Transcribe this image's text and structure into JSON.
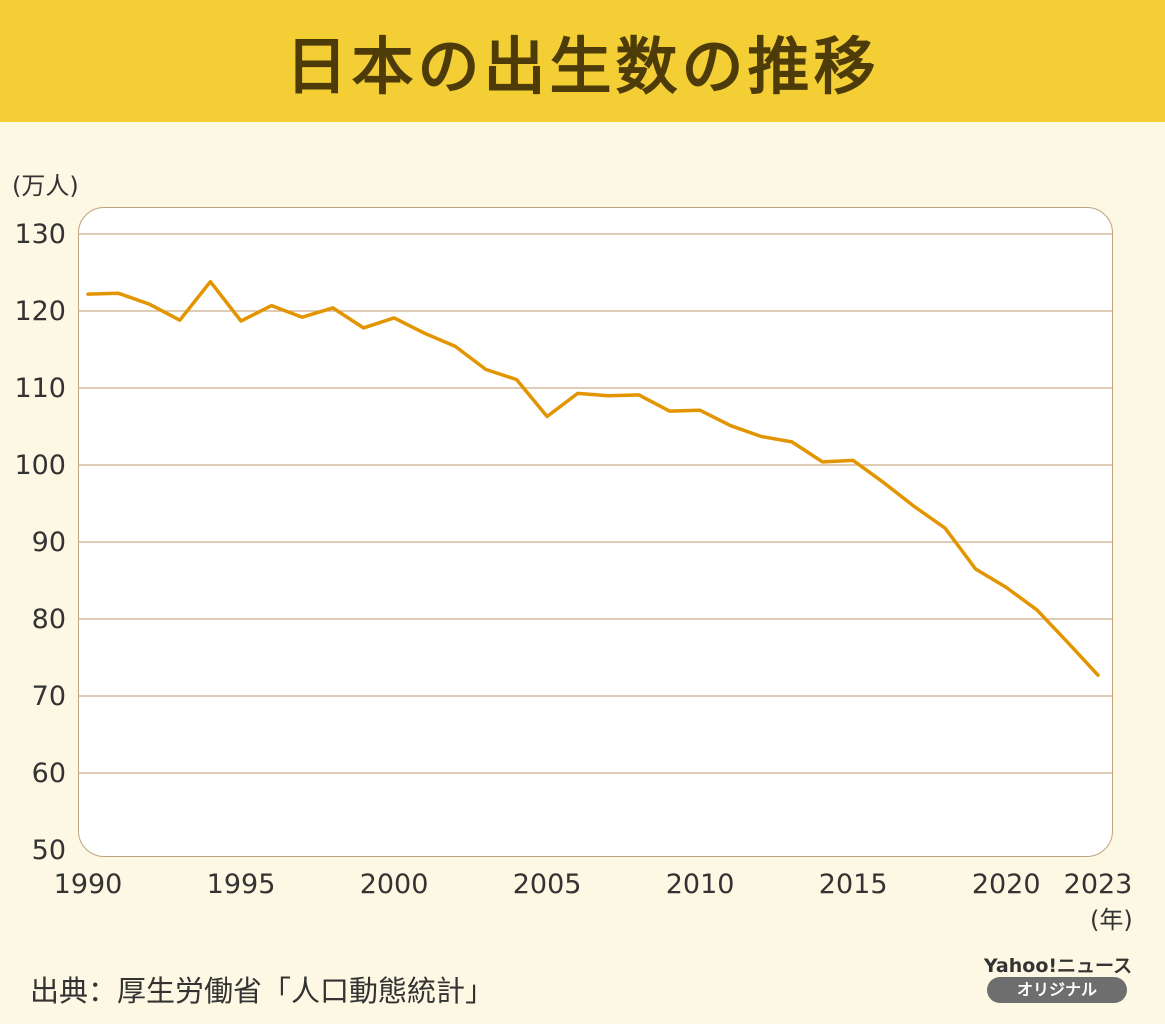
{
  "header": {
    "title": "日本の出生数の推移"
  },
  "source": "出典：厚生労働省「人口動態統計」",
  "logo": {
    "brand": "Yahoo!ニュース",
    "badge": "オリジナル"
  },
  "colors": {
    "line": "#e39500",
    "header": "#f3cf35",
    "background": "#fdf8e3"
  },
  "chart_data": {
    "type": "line",
    "title": "日本の出生数の推移",
    "ylabel": "(万人)",
    "xlabel": "(年)",
    "ylim": [
      50,
      130
    ],
    "xlim": [
      1990,
      2023
    ],
    "yticks": [
      50,
      60,
      70,
      80,
      90,
      100,
      110,
      120,
      130
    ],
    "xticks": [
      "1990",
      "1995",
      "2000",
      "2005",
      "2010",
      "2015",
      "2020",
      "2023"
    ],
    "grid": true,
    "x": [
      1990,
      1991,
      1992,
      1993,
      1994,
      1995,
      1996,
      1997,
      1998,
      1999,
      2000,
      2001,
      2002,
      2003,
      2004,
      2005,
      2006,
      2007,
      2008,
      2009,
      2010,
      2011,
      2012,
      2013,
      2014,
      2015,
      2016,
      2017,
      2018,
      2019,
      2020,
      2021,
      2022,
      2023
    ],
    "values": [
      122.2,
      122.3,
      120.9,
      118.8,
      123.8,
      118.7,
      120.7,
      119.2,
      120.4,
      117.8,
      119.1,
      117.1,
      115.4,
      112.4,
      111.1,
      106.3,
      109.3,
      109.0,
      109.1,
      107.0,
      107.1,
      105.1,
      103.7,
      103.0,
      100.4,
      100.6,
      97.7,
      94.6,
      91.8,
      86.5,
      84.1,
      81.2,
      77.0,
      72.7
    ]
  }
}
